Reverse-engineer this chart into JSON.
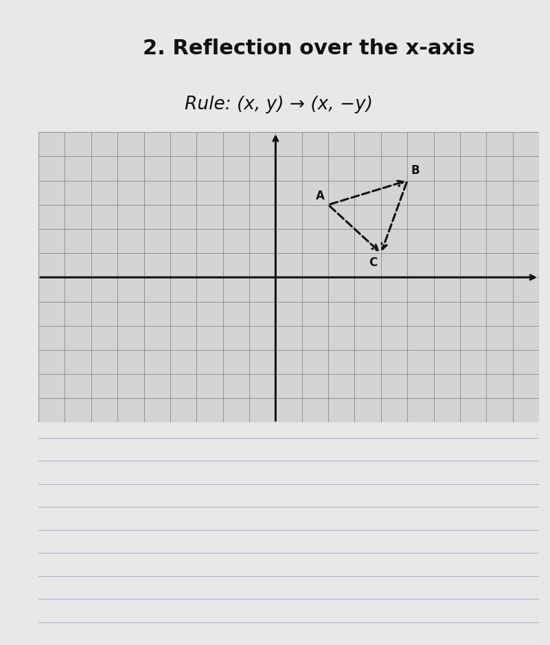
{
  "title_line1": "2. Reflection over the x-axis",
  "title_line2": "Rule: (x, y) → (x, −y)",
  "page_background": "#e8e8e8",
  "grid_area_background": "#d4d4d4",
  "grid_color": "#777777",
  "axis_color": "#111111",
  "triangle_color": "#111111",
  "xlim": [
    -9,
    10
  ],
  "ylim": [
    -6,
    6
  ],
  "point_A": [
    2,
    3
  ],
  "point_B": [
    5,
    4
  ],
  "point_C": [
    4,
    1
  ],
  "label_A": "A",
  "label_B": "B",
  "label_C": "C",
  "label_fontsize": 12,
  "title1_fontsize": 22,
  "title2_fontsize": 19,
  "notebook_line_color": "#b0b0c8",
  "left_bar_color": "#555555",
  "left_bar_width": 0.012
}
